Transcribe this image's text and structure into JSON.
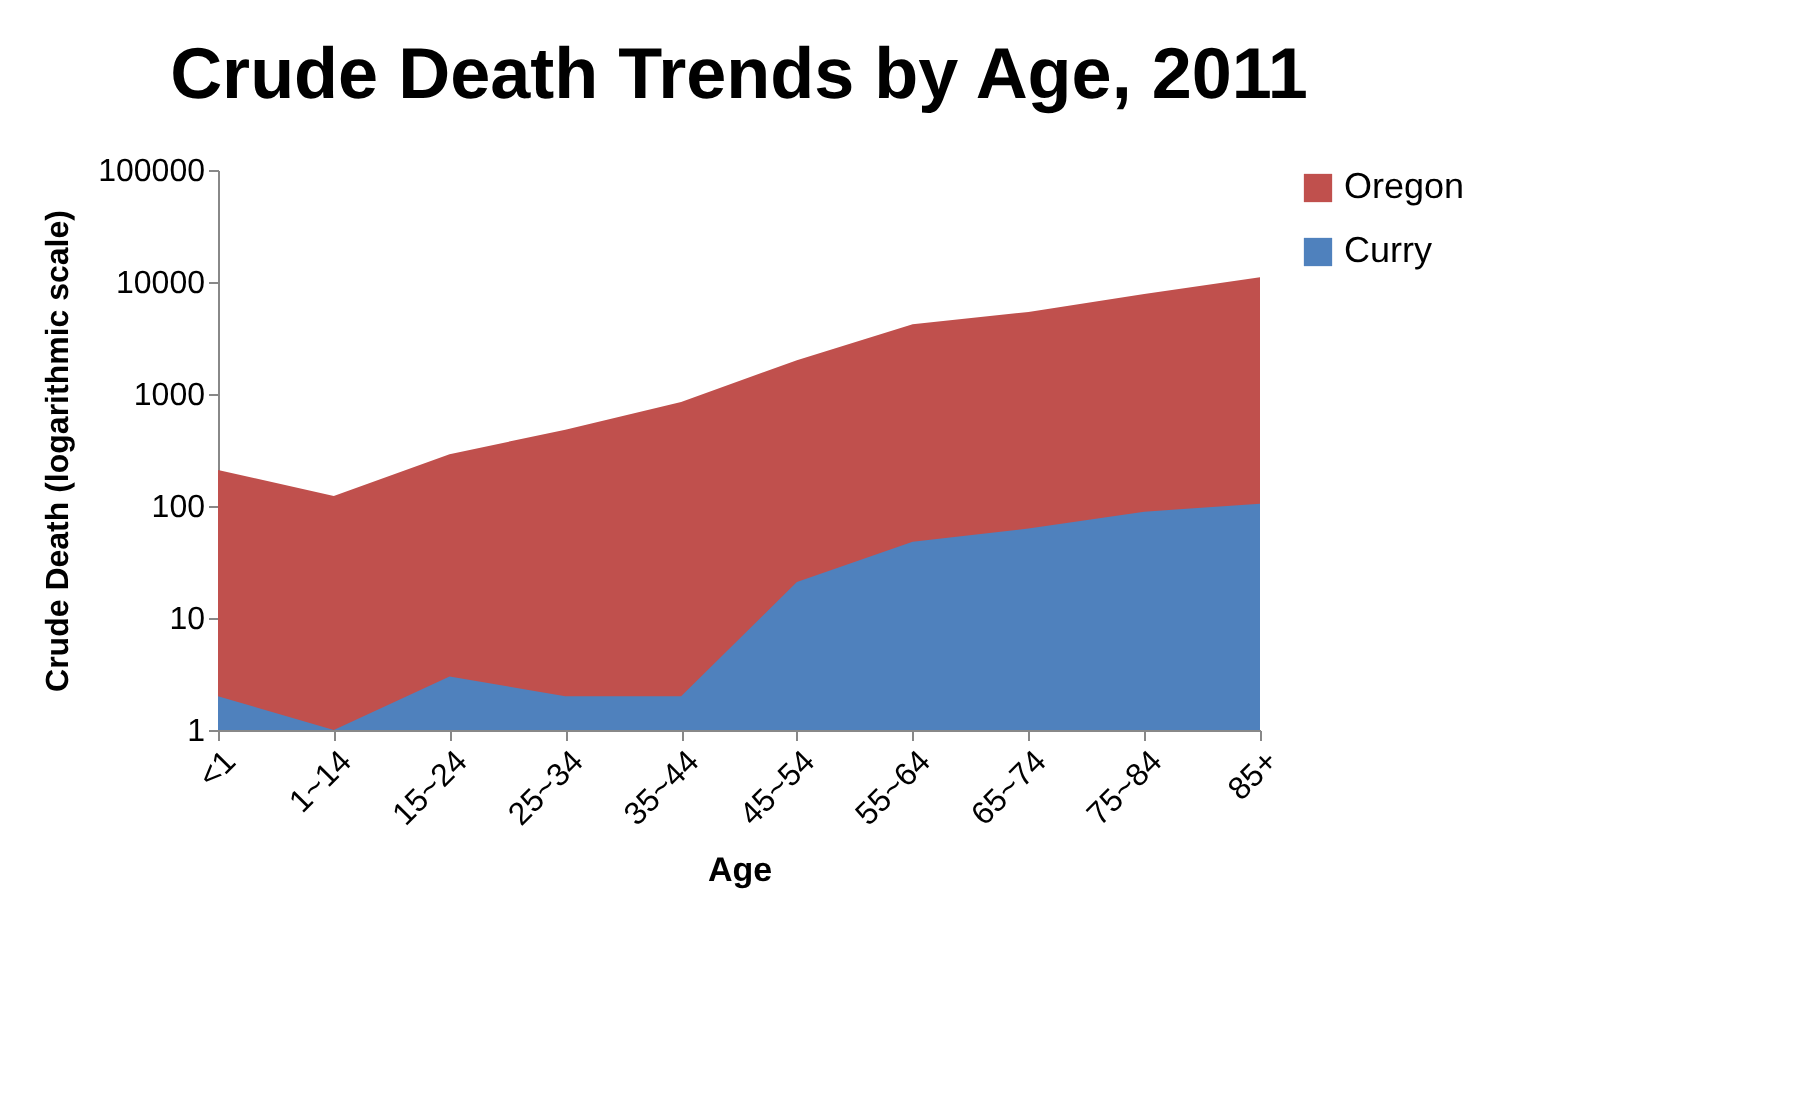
{
  "chart_data": {
    "type": "area",
    "title": "Crude Death Trends by Age, 2011",
    "xlabel": "Age",
    "ylabel": "Crude Death (logarithmic scale)",
    "categories": [
      "<1",
      "1~14",
      "15~24",
      "25~34",
      "35~44",
      "45~54",
      "55~64",
      "65~74",
      "75~84",
      "85+"
    ],
    "series": [
      {
        "name": "Oregon",
        "color": "#c0504d",
        "values": [
          210,
          123,
          290,
          480,
          850,
          2000,
          4200,
          5400,
          7800,
          11000
        ]
      },
      {
        "name": "Curry",
        "color": "#4f81bd",
        "values": [
          2,
          1,
          3,
          2,
          2,
          21,
          48,
          63,
          89,
          105
        ]
      }
    ],
    "log": true,
    "ylim": [
      1,
      100000
    ],
    "yticks": [
      1,
      10,
      100,
      1000,
      10000,
      100000
    ],
    "legend": "right"
  }
}
